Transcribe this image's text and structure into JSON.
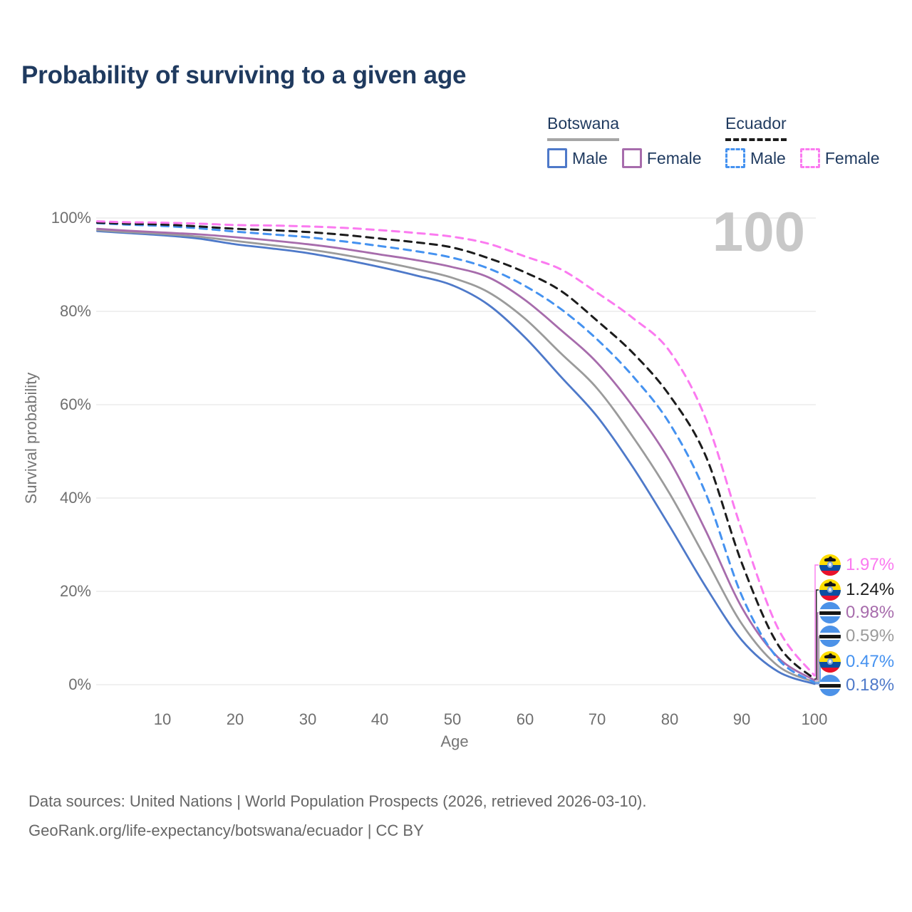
{
  "title": "Probability of surviving to a given age",
  "watermark_age": "100",
  "legend": {
    "groups": [
      {
        "country": "Botswana",
        "line_style": "solid",
        "line_color": "#A6A6A6",
        "items": [
          {
            "label": "Male",
            "color": "#4E79C9",
            "style": "solid"
          },
          {
            "label": "Female",
            "color": "#A76CAC",
            "style": "solid"
          }
        ]
      },
      {
        "country": "Ecuador",
        "line_style": "dashed",
        "line_color": "#1C1C1C",
        "items": [
          {
            "label": "Male",
            "color": "#4592F0",
            "style": "dashed"
          },
          {
            "label": "Female",
            "color": "#FB7AF0",
            "style": "dashed"
          }
        ]
      }
    ]
  },
  "axes": {
    "y_label": "Survival probability",
    "x_label": "Age",
    "y_tick_labels": [
      "100%",
      "80%",
      "60%",
      "40%",
      "20%",
      "0%"
    ],
    "x_tick_labels": [
      "10",
      "20",
      "30",
      "40",
      "50",
      "60",
      "70",
      "80",
      "90",
      "100"
    ]
  },
  "end_labels": [
    {
      "value": "1.97%",
      "country": "Ecuador",
      "sex": "Female",
      "series_index": 5,
      "color": "#FB7AF0"
    },
    {
      "value": "1.24%",
      "country": "Ecuador",
      "sex": "Both sexes",
      "series_index": 4,
      "color": "#1C1C1C"
    },
    {
      "value": "0.98%",
      "country": "Botswana",
      "sex": "Female",
      "series_index": 2,
      "color": "#A76CAC"
    },
    {
      "value": "0.59%",
      "country": "Botswana",
      "sex": "Both sexes",
      "series_index": 1,
      "color": "#9B9B9B"
    },
    {
      "value": "0.47%",
      "country": "Ecuador",
      "sex": "Male",
      "series_index": 3,
      "color": "#4592F0"
    },
    {
      "value": "0.18%",
      "country": "Botswana",
      "sex": "Male",
      "series_index": 0,
      "color": "#4E79C9"
    }
  ],
  "footer": {
    "line1": "Data sources: United Nations | World Population Prospects (2026, retrieved 2026-03-10).",
    "line2": "GeoRank.org/life-expectancy/botswana/ecuador | CC BY"
  },
  "chart_data": {
    "type": "line",
    "title": "Probability of surviving to a given age",
    "xlabel": "Age",
    "ylabel": "Survival probability",
    "xlim": [
      1,
      100
    ],
    "ylim": [
      0,
      100
    ],
    "grid": "horizontal",
    "y_ticks_pct": [
      0,
      20,
      40,
      60,
      80,
      100
    ],
    "x_ticks": [
      10,
      20,
      30,
      40,
      50,
      60,
      70,
      80,
      90,
      100
    ],
    "legend_position": "top-right",
    "x_ages": [
      1,
      5,
      10,
      15,
      20,
      25,
      30,
      35,
      40,
      45,
      50,
      55,
      60,
      65,
      70,
      75,
      80,
      85,
      90,
      95,
      100
    ],
    "series": [
      {
        "name": "Botswana Male",
        "style": "solid",
        "color": "#4E79C9",
        "end_label": "0.18%",
        "values": [
          97.2,
          96.8,
          96.3,
          95.6,
          94.4,
          93.5,
          92.5,
          91.1,
          89.5,
          87.7,
          85.6,
          81.4,
          74.5,
          66.0,
          57.5,
          46.5,
          34.0,
          21.0,
          9.5,
          2.8,
          0.18
        ]
      },
      {
        "name": "Botswana Both sexes",
        "style": "solid",
        "color": "#9B9B9B",
        "end_label": "0.59%",
        "values": [
          97.4,
          97.0,
          96.6,
          96.0,
          95.1,
          94.2,
          93.3,
          92.1,
          90.7,
          89.1,
          87.2,
          84.1,
          78.5,
          71.0,
          63.5,
          53.0,
          41.0,
          27.0,
          13.0,
          4.0,
          0.59
        ]
      },
      {
        "name": "Botswana Female",
        "style": "solid",
        "color": "#A76CAC",
        "end_label": "0.98%",
        "values": [
          97.7,
          97.3,
          96.9,
          96.5,
          95.9,
          95.2,
          94.4,
          93.4,
          92.2,
          91.0,
          89.5,
          87.3,
          82.5,
          76.0,
          69.0,
          59.5,
          48.0,
          33.0,
          16.5,
          5.8,
          0.98
        ]
      },
      {
        "name": "Ecuador Male",
        "style": "dashed",
        "color": "#4592F0",
        "end_label": "0.47%",
        "values": [
          98.9,
          98.6,
          98.3,
          97.8,
          97.1,
          96.5,
          95.9,
          95.0,
          94.0,
          92.9,
          91.5,
          89.2,
          85.5,
          80.5,
          74.0,
          66.0,
          56.0,
          41.0,
          19.0,
          5.5,
          0.47
        ]
      },
      {
        "name": "Ecuador Both sexes",
        "style": "dashed",
        "color": "#1C1C1C",
        "end_label": "1.24%",
        "values": [
          99.0,
          98.8,
          98.6,
          98.2,
          97.7,
          97.4,
          97.0,
          96.4,
          95.6,
          94.8,
          93.7,
          91.4,
          88.4,
          84.4,
          78.0,
          71.0,
          62.0,
          49.0,
          26.0,
          8.5,
          1.24
        ]
      },
      {
        "name": "Ecuador Female",
        "style": "dashed",
        "color": "#FB7AF0",
        "end_label": "1.97%",
        "values": [
          99.3,
          99.1,
          99.0,
          98.8,
          98.5,
          98.4,
          98.2,
          97.9,
          97.4,
          96.8,
          96.0,
          94.5,
          91.8,
          89.0,
          84.0,
          78.5,
          71.5,
          57.0,
          33.0,
          12.0,
          1.97
        ]
      }
    ]
  }
}
